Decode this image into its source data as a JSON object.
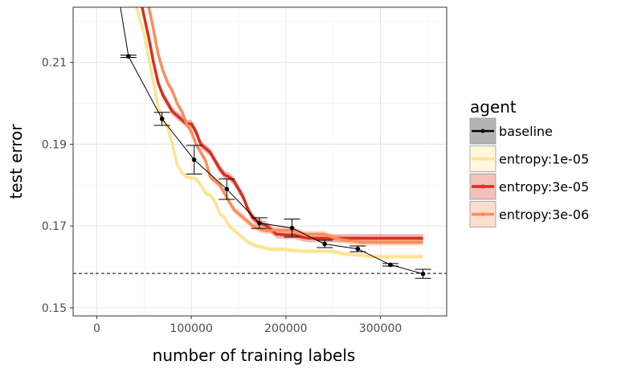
{
  "chart_data": {
    "type": "line",
    "title": "",
    "xlabel": "number of training labels",
    "ylabel": "test error",
    "xlim": [
      -25000,
      370000
    ],
    "ylim": [
      0.148,
      0.2235
    ],
    "xticks": [
      0,
      100000,
      200000,
      300000
    ],
    "xtick_labels": [
      "0",
      "100000",
      "200000",
      "300000"
    ],
    "yticks": [
      0.15,
      0.17,
      0.19,
      0.21
    ],
    "ytick_labels": [
      "0.15",
      "0.17",
      "0.19",
      "0.21"
    ],
    "grid": true,
    "legend": {
      "title": "agent",
      "position": "right"
    },
    "reference_line": {
      "y": 0.1584,
      "style": "dashed"
    },
    "series": [
      {
        "name": "baseline",
        "color": "#000000",
        "style": "points-errorbars",
        "x": [
          25000,
          33500,
          69000,
          103000,
          137500,
          172000,
          206500,
          241000,
          276000,
          310500,
          345000
        ],
        "y": [
          0.2235,
          0.2115,
          0.1962,
          0.1862,
          0.179,
          0.1707,
          0.1695,
          0.1656,
          0.1644,
          0.1605,
          0.1583
        ],
        "err": [
          null,
          0.0003,
          0.0016,
          0.0035,
          0.0025,
          0.0013,
          0.0022,
          0.0009,
          0.0007,
          0.0003,
          0.0011
        ]
      },
      {
        "name": "entropy:1e-05",
        "color": "#fee391",
        "style": "line-ribbon",
        "x": [
          42000,
          50000,
          55000,
          60000,
          65000,
          70000,
          75000,
          80000,
          85000,
          90000,
          95000,
          100000,
          105000,
          110000,
          115000,
          120000,
          125000,
          130000,
          135000,
          140000,
          145000,
          150000,
          155000,
          160000,
          165000,
          170000,
          175000,
          180000,
          185000,
          190000,
          195000,
          200000,
          210000,
          220000,
          230000,
          240000,
          250000,
          260000,
          270000,
          280000,
          290000,
          300000,
          310000,
          320000,
          330000,
          345000
        ],
        "y": [
          0.2235,
          0.217,
          0.211,
          0.205,
          0.199,
          0.196,
          0.194,
          0.19,
          0.185,
          0.183,
          0.182,
          0.1818,
          0.1815,
          0.18,
          0.178,
          0.1775,
          0.176,
          0.173,
          0.172,
          0.17,
          0.169,
          0.168,
          0.167,
          0.166,
          0.1655,
          0.165,
          0.1648,
          0.1645,
          0.1643,
          0.1643,
          0.1643,
          0.1642,
          0.164,
          0.1638,
          0.1638,
          0.1638,
          0.1638,
          0.1632,
          0.163,
          0.1628,
          0.1625,
          0.1625,
          0.1625,
          0.1625,
          0.1625,
          0.1625
        ],
        "band": 0.0006
      },
      {
        "name": "entropy:3e-05",
        "color": "#d7301f",
        "style": "line-ribbon",
        "x": [
          48000,
          55000,
          60000,
          65000,
          70000,
          75000,
          80000,
          85000,
          90000,
          95000,
          100000,
          105000,
          110000,
          115000,
          120000,
          125000,
          130000,
          135000,
          140000,
          145000,
          150000,
          155000,
          160000,
          165000,
          170000,
          175000,
          180000,
          185000,
          190000,
          200000,
          210000,
          218000,
          225000,
          240000,
          260000,
          280000,
          300000,
          320000,
          345000
        ],
        "y": [
          0.2235,
          0.216,
          0.21,
          0.205,
          0.202,
          0.2,
          0.198,
          0.197,
          0.196,
          0.195,
          0.195,
          0.193,
          0.19,
          0.189,
          0.188,
          0.186,
          0.184,
          0.1825,
          0.182,
          0.181,
          0.179,
          0.177,
          0.174,
          0.172,
          0.171,
          0.1705,
          0.17,
          0.169,
          0.168,
          0.1678,
          0.1678,
          0.1672,
          0.167,
          0.167,
          0.167,
          0.167,
          0.167,
          0.167,
          0.167
        ],
        "band": 0.001
      },
      {
        "name": "entropy:3e-06",
        "color": "#fc8d59",
        "style": "line-ribbon",
        "x": [
          55000,
          60000,
          65000,
          70000,
          75000,
          80000,
          85000,
          90000,
          95000,
          100000,
          105000,
          110000,
          115000,
          120000,
          125000,
          130000,
          135000,
          140000,
          145000,
          150000,
          155000,
          160000,
          165000,
          170000,
          175000,
          180000,
          190000,
          200000,
          210000,
          220000,
          230000,
          240000,
          250000,
          260000,
          280000,
          300000,
          320000,
          345000
        ],
        "y": [
          0.2235,
          0.218,
          0.212,
          0.208,
          0.205,
          0.203,
          0.2,
          0.198,
          0.195,
          0.193,
          0.19,
          0.188,
          0.186,
          0.182,
          0.181,
          0.18,
          0.178,
          0.176,
          0.174,
          0.173,
          0.172,
          0.171,
          0.17,
          0.1695,
          0.169,
          0.1688,
          0.169,
          0.169,
          0.1688,
          0.168,
          0.168,
          0.168,
          0.1672,
          0.1666,
          0.166,
          0.166,
          0.166,
          0.166
        ],
        "band": 0.0008
      }
    ]
  }
}
